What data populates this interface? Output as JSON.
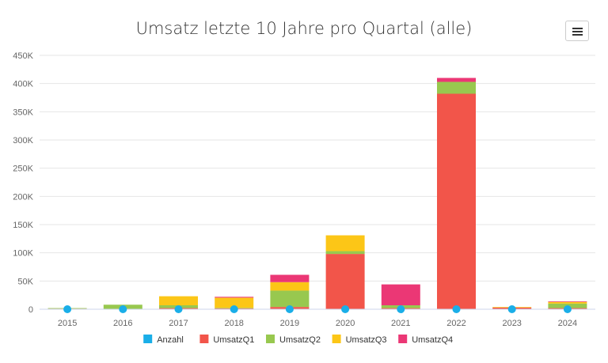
{
  "chart_data": {
    "type": "bar",
    "stacked": true,
    "title": "Umsatz letzte 10 Jahre pro Quartal (alle)",
    "xlabel": "",
    "ylabel": "",
    "categories": [
      "2015",
      "2016",
      "2017",
      "2018",
      "2019",
      "2020",
      "2021",
      "2022",
      "2023",
      "2024"
    ],
    "ylim": [
      0,
      450000
    ],
    "yticks": [
      0,
      50000,
      100000,
      150000,
      200000,
      250000,
      300000,
      350000,
      400000,
      450000
    ],
    "ytick_labels": [
      "0",
      "50K",
      "100K",
      "150K",
      "200K",
      "250K",
      "300K",
      "350K",
      "400K",
      "450K"
    ],
    "grid": true,
    "legend_position": "bottom-center",
    "series": [
      {
        "name": "Anzahl",
        "color": "#1aaee8",
        "marker": "circle",
        "values": [
          0,
          0,
          0,
          0,
          0,
          0,
          0,
          0,
          0,
          0
        ]
      },
      {
        "name": "UmsatzQ1",
        "color": "#f2554a",
        "values": [
          1000,
          0,
          2000,
          1500,
          4000,
          98000,
          2000,
          382000,
          3000,
          2000
        ]
      },
      {
        "name": "UmsatzQ2",
        "color": "#98c84f",
        "values": [
          1000,
          8000,
          5000,
          1000,
          29000,
          5000,
          5000,
          21000,
          0,
          8000
        ]
      },
      {
        "name": "UmsatzQ3",
        "color": "#fcc617",
        "values": [
          0,
          0,
          16000,
          18000,
          15000,
          28000,
          0,
          0,
          1000,
          3000
        ]
      },
      {
        "name": "UmsatzQ4",
        "color": "#eb3775",
        "values": [
          0,
          0,
          0,
          1500,
          13000,
          0,
          37000,
          7000,
          0,
          1000
        ]
      }
    ]
  },
  "menu": {
    "icon": "hamburger-menu-icon"
  }
}
